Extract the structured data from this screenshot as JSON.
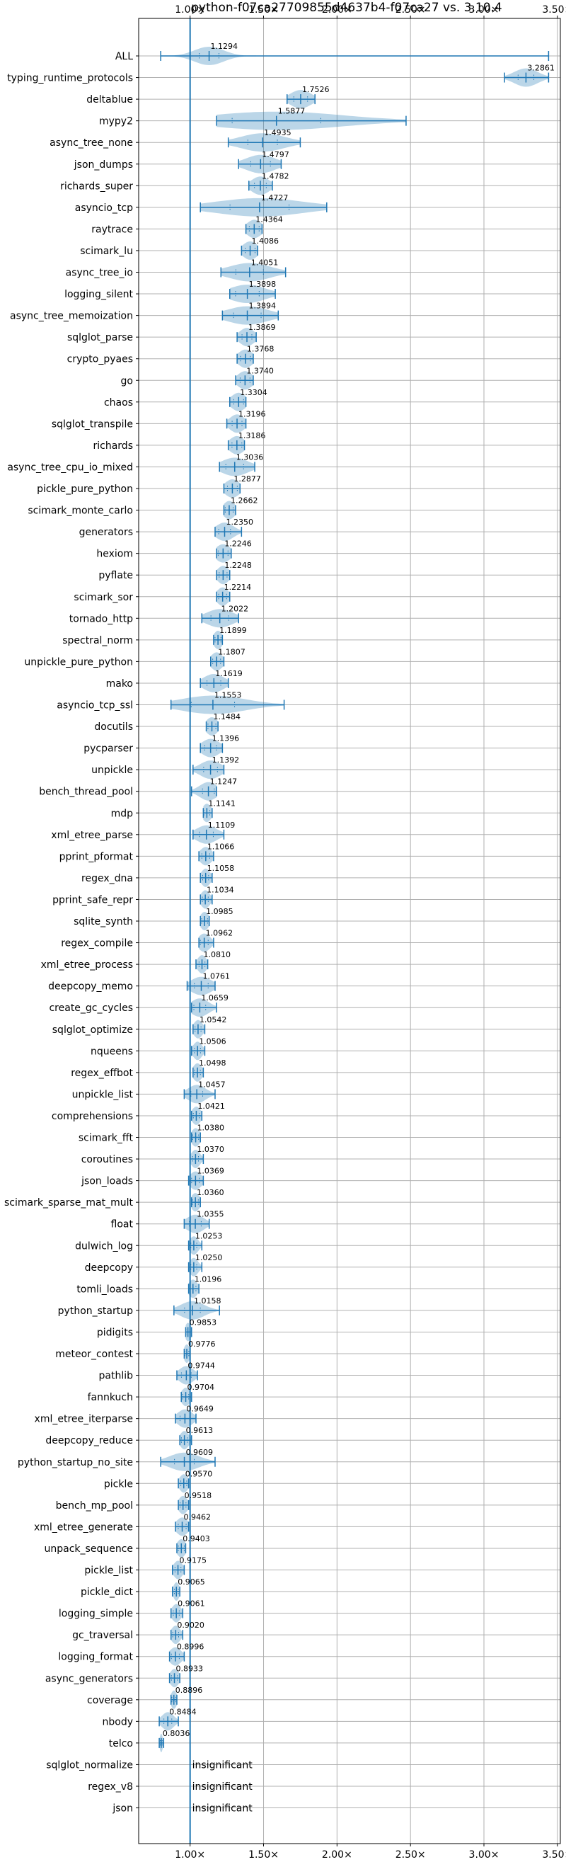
{
  "chart_data": {
    "type": "violin",
    "title": "python-f07ca27709855d4637b4-f07ca27 vs. 3.10.4",
    "x_ticks": [
      {
        "value": 1.0,
        "label": "1.00×"
      },
      {
        "value": 1.5,
        "label": "1.50×"
      },
      {
        "value": 2.0,
        "label": "2.00×"
      },
      {
        "value": 2.5,
        "label": "2.50×"
      },
      {
        "value": 3.0,
        "label": "3.00×"
      },
      {
        "value": 3.5,
        "label": "3.50×"
      }
    ],
    "xlim": [
      0.65,
      3.52
    ],
    "reference_line": 1.0,
    "grid": true,
    "colors": {
      "violin": "#1f77b4",
      "grid": "#b0b0b0"
    },
    "benchmarks": [
      {
        "name": "ALL",
        "value": "1.1294",
        "center": 1.1294,
        "min": 0.8,
        "max": 3.44,
        "spread": 0.1
      },
      {
        "name": "typing_runtime_protocols",
        "value": "3.2861",
        "center": 3.2861,
        "min": 3.14,
        "max": 3.44,
        "spread": 0.08
      },
      {
        "name": "deltablue",
        "value": "1.7526",
        "center": 1.7526,
        "min": 1.66,
        "max": 1.85,
        "spread": 0.07
      },
      {
        "name": "mypy2",
        "value": "1.5877",
        "center": 1.5877,
        "min": 1.18,
        "max": 2.47,
        "spread": 0.45
      },
      {
        "name": "async_tree_none",
        "value": "1.4935",
        "center": 1.4935,
        "min": 1.26,
        "max": 1.75,
        "spread": 0.15
      },
      {
        "name": "json_dumps",
        "value": "1.4797",
        "center": 1.4797,
        "min": 1.33,
        "max": 1.62,
        "spread": 0.1
      },
      {
        "name": "richards_super",
        "value": "1.4782",
        "center": 1.4782,
        "min": 1.4,
        "max": 1.56,
        "spread": 0.06
      },
      {
        "name": "asyncio_tcp",
        "value": "1.4727",
        "center": 1.4727,
        "min": 1.07,
        "max": 1.93,
        "spread": 0.3
      },
      {
        "name": "raytrace",
        "value": "1.4364",
        "center": 1.4364,
        "min": 1.38,
        "max": 1.49,
        "spread": 0.05
      },
      {
        "name": "scimark_lu",
        "value": "1.4086",
        "center": 1.4086,
        "min": 1.35,
        "max": 1.46,
        "spread": 0.05
      },
      {
        "name": "async_tree_io",
        "value": "1.4051",
        "center": 1.4051,
        "min": 1.21,
        "max": 1.65,
        "spread": 0.14
      },
      {
        "name": "logging_silent",
        "value": "1.3898",
        "center": 1.3898,
        "min": 1.27,
        "max": 1.58,
        "spread": 0.12
      },
      {
        "name": "async_tree_memoization",
        "value": "1.3894",
        "center": 1.3894,
        "min": 1.22,
        "max": 1.6,
        "spread": 0.14
      },
      {
        "name": "sqlglot_parse",
        "value": "1.3869",
        "center": 1.3869,
        "min": 1.32,
        "max": 1.45,
        "spread": 0.05
      },
      {
        "name": "crypto_pyaes",
        "value": "1.3768",
        "center": 1.3768,
        "min": 1.32,
        "max": 1.43,
        "spread": 0.05
      },
      {
        "name": "go",
        "value": "1.3740",
        "center": 1.374,
        "min": 1.31,
        "max": 1.43,
        "spread": 0.05
      },
      {
        "name": "chaos",
        "value": "1.3304",
        "center": 1.3304,
        "min": 1.27,
        "max": 1.38,
        "spread": 0.05
      },
      {
        "name": "sqlglot_transpile",
        "value": "1.3196",
        "center": 1.3196,
        "min": 1.25,
        "max": 1.38,
        "spread": 0.05
      },
      {
        "name": "richards",
        "value": "1.3186",
        "center": 1.3186,
        "min": 1.26,
        "max": 1.37,
        "spread": 0.05
      },
      {
        "name": "async_tree_cpu_io_mixed",
        "value": "1.3036",
        "center": 1.3036,
        "min": 1.2,
        "max": 1.44,
        "spread": 0.09
      },
      {
        "name": "pickle_pure_python",
        "value": "1.2877",
        "center": 1.2877,
        "min": 1.23,
        "max": 1.34,
        "spread": 0.05
      },
      {
        "name": "scimark_monte_carlo",
        "value": "1.2662",
        "center": 1.2662,
        "min": 1.23,
        "max": 1.31,
        "spread": 0.04
      },
      {
        "name": "generators",
        "value": "1.2350",
        "center": 1.235,
        "min": 1.17,
        "max": 1.35,
        "spread": 0.06
      },
      {
        "name": "hexiom",
        "value": "1.2246",
        "center": 1.2246,
        "min": 1.18,
        "max": 1.28,
        "spread": 0.05
      },
      {
        "name": "pyflate",
        "value": "1.2248",
        "center": 1.2248,
        "min": 1.18,
        "max": 1.27,
        "spread": 0.04
      },
      {
        "name": "scimark_sor",
        "value": "1.2214",
        "center": 1.2214,
        "min": 1.18,
        "max": 1.27,
        "spread": 0.04
      },
      {
        "name": "tornado_http",
        "value": "1.2022",
        "center": 1.2022,
        "min": 1.08,
        "max": 1.33,
        "spread": 0.09
      },
      {
        "name": "spectral_norm",
        "value": "1.1899",
        "center": 1.1899,
        "min": 1.16,
        "max": 1.22,
        "spread": 0.03
      },
      {
        "name": "unpickle_pure_python",
        "value": "1.1807",
        "center": 1.1807,
        "min": 1.14,
        "max": 1.23,
        "spread": 0.04
      },
      {
        "name": "mako",
        "value": "1.1619",
        "center": 1.1619,
        "min": 1.07,
        "max": 1.26,
        "spread": 0.07
      },
      {
        "name": "asyncio_tcp_ssl",
        "value": "1.1553",
        "center": 1.1553,
        "min": 0.87,
        "max": 1.64,
        "spread": 0.22
      },
      {
        "name": "docutils",
        "value": "1.1484",
        "center": 1.1484,
        "min": 1.11,
        "max": 1.19,
        "spread": 0.04
      },
      {
        "name": "pycparser",
        "value": "1.1396",
        "center": 1.1396,
        "min": 1.07,
        "max": 1.22,
        "spread": 0.06
      },
      {
        "name": "unpickle",
        "value": "1.1392",
        "center": 1.1392,
        "min": 1.02,
        "max": 1.23,
        "spread": 0.07
      },
      {
        "name": "bench_thread_pool",
        "value": "1.1247",
        "center": 1.1247,
        "min": 1.01,
        "max": 1.18,
        "spread": 0.06
      },
      {
        "name": "mdp",
        "value": "1.1141",
        "center": 1.1141,
        "min": 1.09,
        "max": 1.15,
        "spread": 0.03
      },
      {
        "name": "xml_etree_parse",
        "value": "1.1109",
        "center": 1.1109,
        "min": 1.02,
        "max": 1.23,
        "spread": 0.07
      },
      {
        "name": "pprint_pformat",
        "value": "1.1066",
        "center": 1.1066,
        "min": 1.06,
        "max": 1.16,
        "spread": 0.04
      },
      {
        "name": "regex_dna",
        "value": "1.1058",
        "center": 1.1058,
        "min": 1.07,
        "max": 1.15,
        "spread": 0.03
      },
      {
        "name": "pprint_safe_repr",
        "value": "1.1034",
        "center": 1.1034,
        "min": 1.07,
        "max": 1.15,
        "spread": 0.03
      },
      {
        "name": "sqlite_synth",
        "value": "1.0985",
        "center": 1.0985,
        "min": 1.07,
        "max": 1.13,
        "spread": 0.03
      },
      {
        "name": "regex_compile",
        "value": "1.0962",
        "center": 1.0962,
        "min": 1.06,
        "max": 1.16,
        "spread": 0.04
      },
      {
        "name": "xml_etree_process",
        "value": "1.0810",
        "center": 1.081,
        "min": 1.04,
        "max": 1.12,
        "spread": 0.03
      },
      {
        "name": "deepcopy_memo",
        "value": "1.0761",
        "center": 1.0761,
        "min": 0.98,
        "max": 1.17,
        "spread": 0.07
      },
      {
        "name": "create_gc_cycles",
        "value": "1.0659",
        "center": 1.0659,
        "min": 1.01,
        "max": 1.18,
        "spread": 0.06
      },
      {
        "name": "sqlglot_optimize",
        "value": "1.0542",
        "center": 1.0542,
        "min": 1.02,
        "max": 1.1,
        "spread": 0.03
      },
      {
        "name": "nqueens",
        "value": "1.0506",
        "center": 1.0506,
        "min": 1.01,
        "max": 1.1,
        "spread": 0.03
      },
      {
        "name": "regex_effbot",
        "value": "1.0498",
        "center": 1.0498,
        "min": 1.02,
        "max": 1.09,
        "spread": 0.03
      },
      {
        "name": "unpickle_list",
        "value": "1.0457",
        "center": 1.0457,
        "min": 0.96,
        "max": 1.17,
        "spread": 0.06
      },
      {
        "name": "comprehensions",
        "value": "1.0421",
        "center": 1.0421,
        "min": 1.01,
        "max": 1.08,
        "spread": 0.03
      },
      {
        "name": "scimark_fft",
        "value": "1.0380",
        "center": 1.038,
        "min": 1.01,
        "max": 1.07,
        "spread": 0.03
      },
      {
        "name": "coroutines",
        "value": "1.0370",
        "center": 1.037,
        "min": 1.0,
        "max": 1.09,
        "spread": 0.03
      },
      {
        "name": "json_loads",
        "value": "1.0369",
        "center": 1.0369,
        "min": 0.99,
        "max": 1.09,
        "spread": 0.04
      },
      {
        "name": "scimark_sparse_mat_mult",
        "value": "1.0360",
        "center": 1.036,
        "min": 1.01,
        "max": 1.07,
        "spread": 0.03
      },
      {
        "name": "float",
        "value": "1.0355",
        "center": 1.0355,
        "min": 0.96,
        "max": 1.13,
        "spread": 0.06
      },
      {
        "name": "dulwich_log",
        "value": "1.0253",
        "center": 1.0253,
        "min": 0.99,
        "max": 1.08,
        "spread": 0.03
      },
      {
        "name": "deepcopy",
        "value": "1.0250",
        "center": 1.025,
        "min": 0.99,
        "max": 1.08,
        "spread": 0.03
      },
      {
        "name": "tomli_loads",
        "value": "1.0196",
        "center": 1.0196,
        "min": 0.99,
        "max": 1.06,
        "spread": 0.03
      },
      {
        "name": "python_startup",
        "value": "1.0158",
        "center": 1.0158,
        "min": 0.89,
        "max": 1.2,
        "spread": 0.08
      },
      {
        "name": "pidigits",
        "value": "0.9853",
        "center": 0.9853,
        "min": 0.97,
        "max": 1.01,
        "spread": 0.02
      },
      {
        "name": "meteor_contest",
        "value": "0.9776",
        "center": 0.9776,
        "min": 0.96,
        "max": 1.0,
        "spread": 0.02
      },
      {
        "name": "pathlib",
        "value": "0.9744",
        "center": 0.9744,
        "min": 0.91,
        "max": 1.05,
        "spread": 0.05
      },
      {
        "name": "fannkuch",
        "value": "0.9704",
        "center": 0.9704,
        "min": 0.94,
        "max": 1.01,
        "spread": 0.03
      },
      {
        "name": "xml_etree_iterparse",
        "value": "0.9649",
        "center": 0.9649,
        "min": 0.9,
        "max": 1.04,
        "spread": 0.05
      },
      {
        "name": "deepcopy_reduce",
        "value": "0.9613",
        "center": 0.9613,
        "min": 0.93,
        "max": 1.01,
        "spread": 0.03
      },
      {
        "name": "python_startup_no_site",
        "value": "0.9609",
        "center": 0.9609,
        "min": 0.8,
        "max": 1.17,
        "spread": 0.1
      },
      {
        "name": "pickle",
        "value": "0.9570",
        "center": 0.957,
        "min": 0.92,
        "max": 0.99,
        "spread": 0.03
      },
      {
        "name": "bench_mp_pool",
        "value": "0.9518",
        "center": 0.9518,
        "min": 0.92,
        "max": 0.99,
        "spread": 0.03
      },
      {
        "name": "xml_etree_generate",
        "value": "0.9462",
        "center": 0.9462,
        "min": 0.9,
        "max": 0.99,
        "spread": 0.04
      },
      {
        "name": "unpack_sequence",
        "value": "0.9403",
        "center": 0.9403,
        "min": 0.91,
        "max": 0.97,
        "spread": 0.03
      },
      {
        "name": "pickle_list",
        "value": "0.9175",
        "center": 0.9175,
        "min": 0.88,
        "max": 0.96,
        "spread": 0.03
      },
      {
        "name": "pickle_dict",
        "value": "0.9065",
        "center": 0.9065,
        "min": 0.88,
        "max": 0.93,
        "spread": 0.02
      },
      {
        "name": "logging_simple",
        "value": "0.9061",
        "center": 0.9061,
        "min": 0.87,
        "max": 0.95,
        "spread": 0.03
      },
      {
        "name": "gc_traversal",
        "value": "0.9020",
        "center": 0.902,
        "min": 0.87,
        "max": 0.95,
        "spread": 0.03
      },
      {
        "name": "logging_format",
        "value": "0.8996",
        "center": 0.8996,
        "min": 0.86,
        "max": 0.96,
        "spread": 0.04
      },
      {
        "name": "async_generators",
        "value": "0.8933",
        "center": 0.8933,
        "min": 0.86,
        "max": 0.93,
        "spread": 0.03
      },
      {
        "name": "coverage",
        "value": "0.8896",
        "center": 0.8896,
        "min": 0.87,
        "max": 0.91,
        "spread": 0.02
      },
      {
        "name": "nbody",
        "value": "0.8484",
        "center": 0.8484,
        "min": 0.79,
        "max": 0.92,
        "spread": 0.04
      },
      {
        "name": "telco",
        "value": "0.8036",
        "center": 0.8036,
        "min": 0.79,
        "max": 0.82,
        "spread": 0.01
      },
      {
        "name": "sqlglot_normalize",
        "value": "insignificant"
      },
      {
        "name": "regex_v8",
        "value": "insignificant"
      },
      {
        "name": "json",
        "value": "insignificant"
      }
    ]
  }
}
